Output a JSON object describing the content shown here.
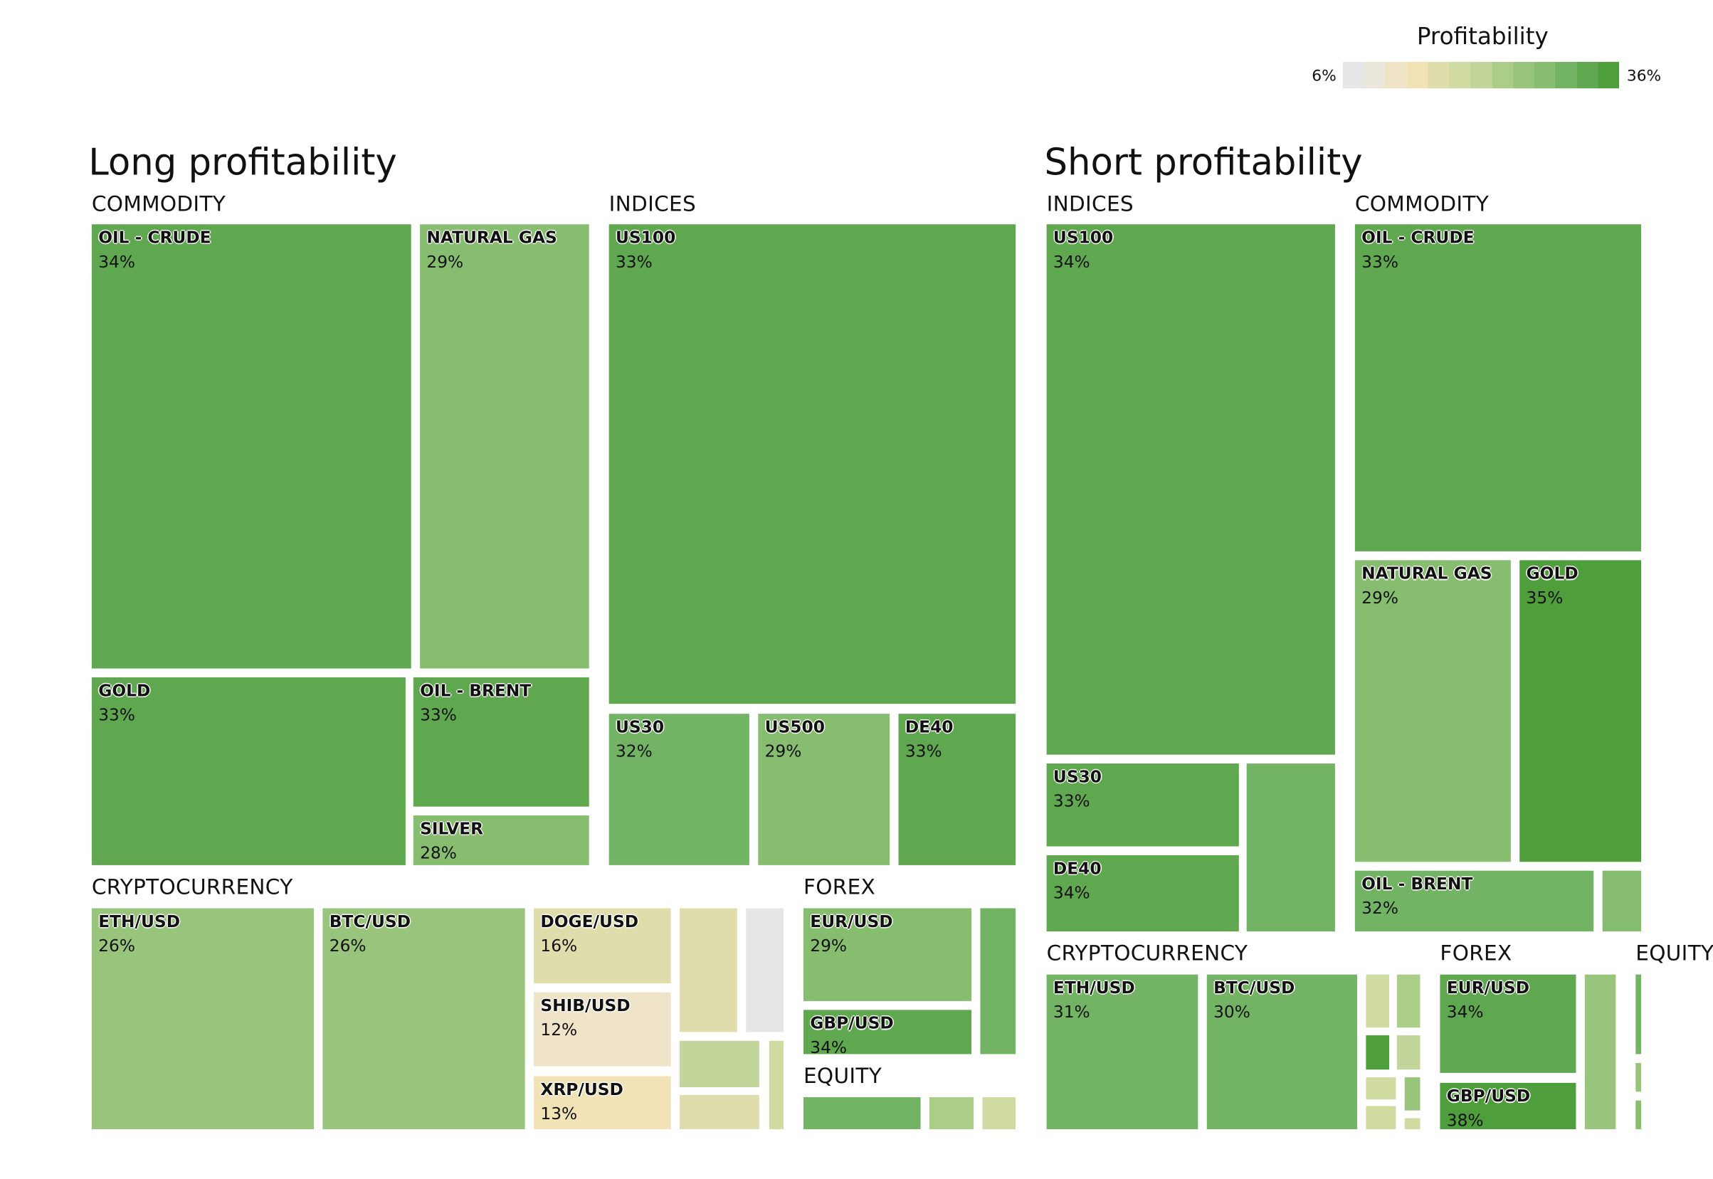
{
  "legend": {
    "title": "Profitability",
    "min_label": "6%",
    "max_label": "36%",
    "min": 6,
    "max": 36,
    "colors": [
      "#e6e6e6",
      "#eae6d9",
      "#efe4c8",
      "#f1e3b6",
      "#dfddab",
      "#d0dba2",
      "#c2d59b",
      "#aacd88",
      "#98c47c",
      "#86bd6e",
      "#73b464",
      "#5fa84f",
      "#4f9e3c"
    ]
  },
  "chart_data": [
    {
      "type": "treemap",
      "title": "Long profitability",
      "groups": [
        {
          "name": "COMMODITY",
          "items": [
            {
              "label": "OIL - CRUDE",
              "value": 34
            },
            {
              "label": "NATURAL GAS",
              "value": 29
            },
            {
              "label": "GOLD",
              "value": 33
            },
            {
              "label": "OIL - BRENT",
              "value": 33
            },
            {
              "label": "SILVER",
              "value": 28
            }
          ]
        },
        {
          "name": "INDICES",
          "items": [
            {
              "label": "US100",
              "value": 33
            },
            {
              "label": "US30",
              "value": 32
            },
            {
              "label": "US500",
              "value": 29
            },
            {
              "label": "DE40",
              "value": 33
            }
          ]
        },
        {
          "name": "CRYPTOCURRENCY",
          "items": [
            {
              "label": "ETH/USD",
              "value": 26
            },
            {
              "label": "BTC/USD",
              "value": 26
            },
            {
              "label": "DOGE/USD",
              "value": 16
            },
            {
              "label": "SHIB/USD",
              "value": 12
            },
            {
              "label": "XRP/USD",
              "value": 13
            },
            {
              "label": "",
              "value": 17
            },
            {
              "label": "",
              "value": 7
            },
            {
              "label": "",
              "value": 21
            },
            {
              "label": "",
              "value": 17
            },
            {
              "label": "",
              "value": 18
            }
          ]
        },
        {
          "name": "FOREX",
          "items": [
            {
              "label": "EUR/USD",
              "value": 29
            },
            {
              "label": "GBP/USD",
              "value": 34
            },
            {
              "label": "",
              "value": 30
            }
          ]
        },
        {
          "name": "EQUITY",
          "items": [
            {
              "label": "",
              "value": 30
            },
            {
              "label": "",
              "value": 23
            },
            {
              "label": "",
              "value": 18
            }
          ]
        }
      ]
    },
    {
      "type": "treemap",
      "title": "Short profitability",
      "groups": [
        {
          "name": "INDICES",
          "items": [
            {
              "label": "US100",
              "value": 34
            },
            {
              "label": "US30",
              "value": 33
            },
            {
              "label": "DE40",
              "value": 34
            },
            {
              "label": "",
              "value": 30
            }
          ]
        },
        {
          "name": "COMMODITY",
          "items": [
            {
              "label": "OIL - CRUDE",
              "value": 33
            },
            {
              "label": "NATURAL GAS",
              "value": 29
            },
            {
              "label": "GOLD",
              "value": 35
            },
            {
              "label": "OIL - BRENT",
              "value": 32
            },
            {
              "label": "",
              "value": 29
            }
          ]
        },
        {
          "name": "CRYPTOCURRENCY",
          "items": [
            {
              "label": "ETH/USD",
              "value": 31
            },
            {
              "label": "BTC/USD",
              "value": 30
            },
            {
              "label": "",
              "value": 19
            },
            {
              "label": "",
              "value": 24
            },
            {
              "label": "",
              "value": 36
            },
            {
              "label": "",
              "value": 22
            },
            {
              "label": "",
              "value": 18
            },
            {
              "label": "",
              "value": 27
            },
            {
              "label": "",
              "value": 19
            },
            {
              "label": "",
              "value": 18
            }
          ]
        },
        {
          "name": "FOREX",
          "items": [
            {
              "label": "EUR/USD",
              "value": 34
            },
            {
              "label": "GBP/USD",
              "value": 38
            },
            {
              "label": "",
              "value": 25
            }
          ]
        },
        {
          "name": "EQUITY",
          "items": [
            {
              "label": "",
              "value": 30
            },
            {
              "label": "",
              "value": 27
            },
            {
              "label": "",
              "value": 29
            }
          ]
        }
      ]
    }
  ]
}
